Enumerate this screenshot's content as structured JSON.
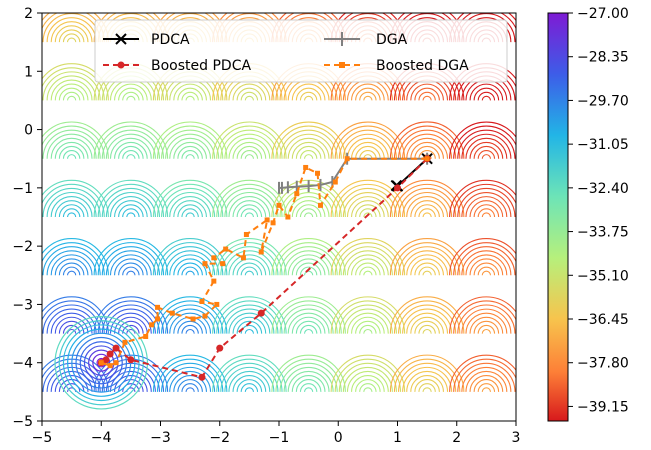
{
  "chart_data": {
    "type": "line",
    "subtype": "contour",
    "xlim": [
      -5,
      3
    ],
    "ylim": [
      -5,
      2
    ],
    "x_ticks": [
      -5,
      -4,
      -3,
      -2,
      -1,
      0,
      1,
      2,
      3
    ],
    "y_ticks": [
      -5,
      -4,
      -3,
      -2,
      -1,
      0,
      1,
      2
    ],
    "x_tick_labels": [
      "−5",
      "−4",
      "−3",
      "−2",
      "−1",
      "0",
      "1",
      "2",
      "3"
    ],
    "y_tick_labels": [
      "−5",
      "−4",
      "−3",
      "−2",
      "−1",
      "0",
      "1",
      "2"
    ],
    "grid": false,
    "legend_position": "top",
    "colorbar": {
      "min": -39.6,
      "max": -27.0,
      "colormap": "rainbow",
      "ticks": [
        -39.15,
        -37.8,
        -36.45,
        -35.1,
        -33.75,
        -32.4,
        -31.05,
        -29.7,
        -28.35,
        -27.0
      ],
      "tick_labels": [
        "−39.15",
        "−37.80",
        "−36.45",
        "−35.10",
        "−33.75",
        "−32.40",
        "−31.05",
        "−29.70",
        "−28.35",
        "−27.00"
      ]
    },
    "series": [
      {
        "name": "PDCA",
        "color": "#000000",
        "linestyle": "solid",
        "marker": "x",
        "points": [
          [
            1.5,
            -0.5
          ],
          [
            1.0,
            -0.97
          ],
          [
            0.98,
            -0.96
          ]
        ]
      },
      {
        "name": "DGA",
        "color": "#808080",
        "linestyle": "solid",
        "marker": "|",
        "points": [
          [
            1.5,
            -0.5
          ],
          [
            0.15,
            -0.5
          ],
          [
            -0.1,
            -0.9
          ],
          [
            -0.3,
            -0.95
          ],
          [
            -0.5,
            -0.97
          ],
          [
            -0.7,
            -0.98
          ],
          [
            -0.85,
            -0.99
          ],
          [
            -0.95,
            -1.0
          ],
          [
            -1.0,
            -1.0
          ]
        ]
      },
      {
        "name": "Boosted PDCA",
        "color": "#d62728",
        "linestyle": "dashed",
        "marker": "o",
        "points": [
          [
            1.5,
            -0.5
          ],
          [
            1.0,
            -1.0
          ],
          [
            -1.3,
            -3.15
          ],
          [
            -2.0,
            -3.75
          ],
          [
            -2.3,
            -4.25
          ],
          [
            -3.5,
            -3.95
          ],
          [
            -3.75,
            -3.75
          ],
          [
            -3.85,
            -3.85
          ],
          [
            -3.92,
            -3.95
          ],
          [
            -4.0,
            -4.0
          ]
        ]
      },
      {
        "name": "Boosted DGA",
        "color": "#ff7f0e",
        "linestyle": "dashed",
        "marker": "s",
        "points": [
          [
            1.5,
            -0.5
          ],
          [
            0.15,
            -0.5
          ],
          [
            -0.05,
            -0.9
          ],
          [
            -0.3,
            -1.3
          ],
          [
            -0.35,
            -0.75
          ],
          [
            -0.55,
            -0.65
          ],
          [
            -0.7,
            -1.1
          ],
          [
            -0.85,
            -1.5
          ],
          [
            -1.0,
            -1.3
          ],
          [
            -1.1,
            -1.6
          ],
          [
            -1.3,
            -2.1
          ],
          [
            -1.2,
            -1.55
          ],
          [
            -1.55,
            -1.8
          ],
          [
            -1.6,
            -2.2
          ],
          [
            -1.9,
            -2.05
          ],
          [
            -2.1,
            -2.2
          ],
          [
            -1.95,
            -2.3
          ],
          [
            -2.25,
            -2.3
          ],
          [
            -2.1,
            -2.6
          ],
          [
            -2.3,
            -2.95
          ],
          [
            -2.05,
            -3.0
          ],
          [
            -2.25,
            -3.2
          ],
          [
            -2.45,
            -3.25
          ],
          [
            -2.8,
            -3.15
          ],
          [
            -3.05,
            -3.05
          ],
          [
            -3.05,
            -3.25
          ],
          [
            -3.15,
            -3.35
          ],
          [
            -3.25,
            -3.55
          ],
          [
            -3.6,
            -3.65
          ],
          [
            -3.75,
            -4.0
          ],
          [
            -3.85,
            -4.05
          ],
          [
            -4.0,
            -4.0
          ]
        ]
      }
    ]
  }
}
